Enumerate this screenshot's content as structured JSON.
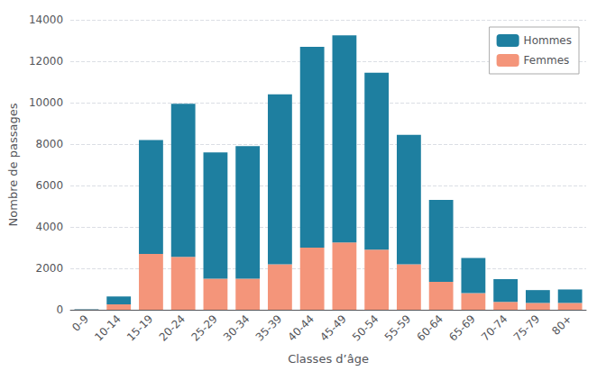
{
  "chart_data": {
    "type": "bar",
    "stacked": true,
    "categories": [
      "0-9",
      "10-14",
      "15-19",
      "20-24",
      "25-29",
      "30-34",
      "35-39",
      "40-44",
      "45-49",
      "50-54",
      "55-59",
      "60-64",
      "65-69",
      "70-74",
      "75-79",
      "80+"
    ],
    "series": [
      {
        "name": "Femmes",
        "color": "#f4957a",
        "values": [
          10,
          260,
          2700,
          2550,
          1500,
          1500,
          2200,
          3000,
          3250,
          2900,
          2200,
          1350,
          800,
          380,
          330,
          330
        ]
      },
      {
        "name": "Hommes",
        "color": "#1e7fa0",
        "values": [
          20,
          380,
          5500,
          7400,
          6100,
          6400,
          8200,
          9700,
          10000,
          8550,
          6250,
          3950,
          1700,
          1100,
          620,
          650
        ]
      }
    ],
    "xlabel": "Classes d’âge",
    "ylabel": "Nombre de passages",
    "ylim": [
      0,
      14000
    ],
    "yticks": [
      0,
      2000,
      4000,
      6000,
      8000,
      10000,
      12000,
      14000
    ],
    "grid": true,
    "legend": "upper right"
  }
}
